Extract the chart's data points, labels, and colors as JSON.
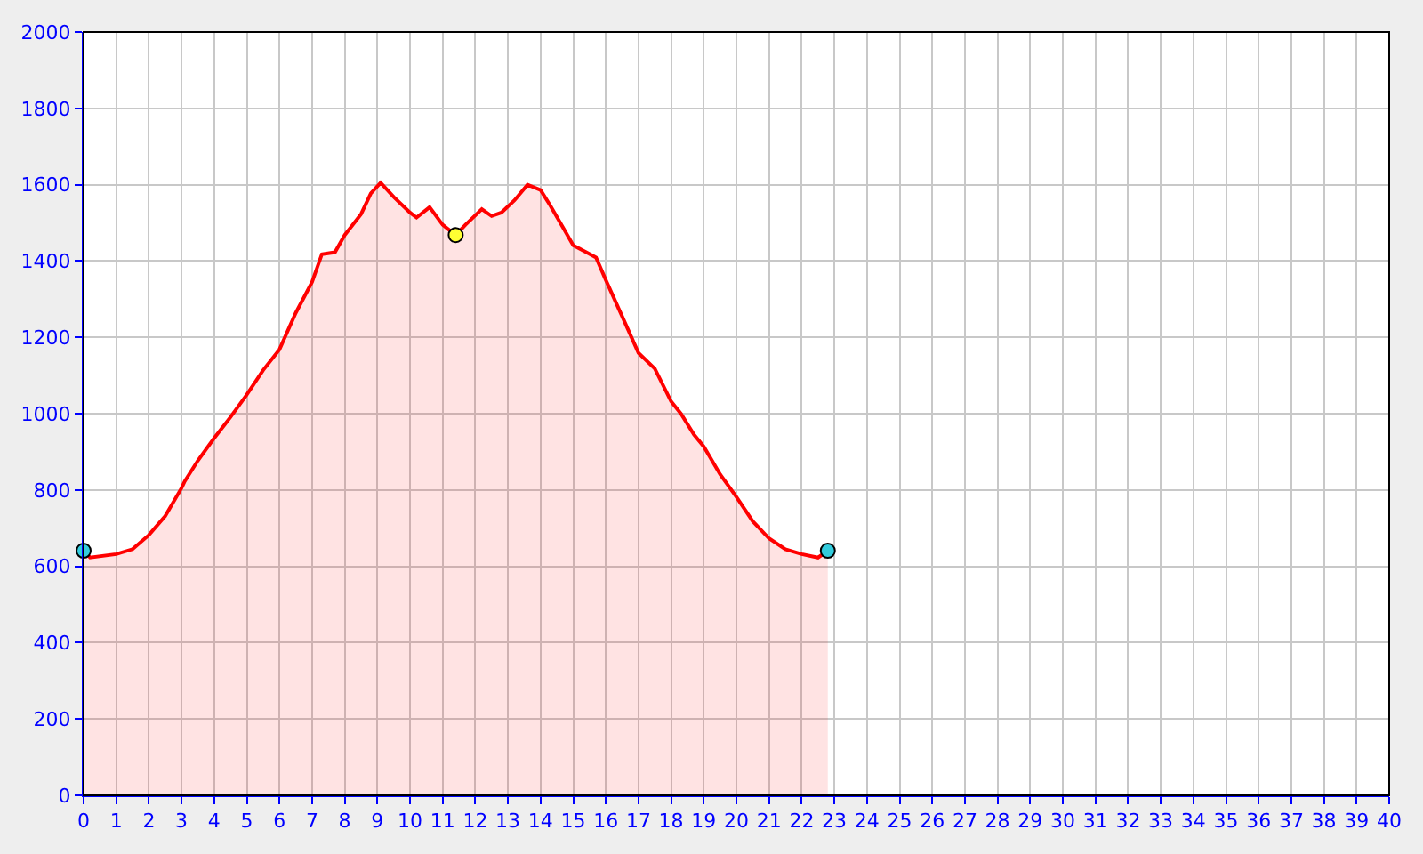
{
  "chart_data": {
    "type": "area",
    "xlim": [
      0,
      40
    ],
    "ylim": [
      0,
      2000
    ],
    "xticks": [
      0,
      1,
      2,
      3,
      4,
      5,
      6,
      7,
      8,
      9,
      10,
      11,
      12,
      13,
      14,
      15,
      16,
      17,
      18,
      19,
      20,
      21,
      22,
      23,
      24,
      25,
      26,
      27,
      28,
      29,
      30,
      31,
      32,
      33,
      34,
      35,
      36,
      37,
      38,
      39,
      40
    ],
    "yticks": [
      0,
      200,
      400,
      600,
      800,
      1000,
      1200,
      1400,
      1600,
      1800,
      2000
    ],
    "grid": true,
    "series": [
      {
        "color": "#ff0000",
        "marker": "none",
        "x": [
          0,
          0.2,
          1,
          1.5,
          2,
          2.5,
          3,
          3.1,
          3.5,
          4,
          4.5,
          5,
          5.5,
          6,
          6.5,
          7,
          7.3,
          7.7,
          8,
          8.5,
          8.8,
          9.1,
          9.5,
          10,
          10.2,
          10.6,
          11,
          11.4,
          11.7,
          12.2,
          12.5,
          12.8,
          13.2,
          13.6,
          14,
          14.3,
          14.7,
          15,
          15.4,
          15.7,
          16,
          16.5,
          17,
          17.5,
          18,
          18.3,
          18.7,
          19,
          19.5,
          20,
          20.5,
          21,
          21.5,
          22,
          22.5,
          22.8
        ],
        "values": [
          641,
          623,
          632,
          645,
          682,
          732,
          805,
          823,
          877,
          936,
          991,
          1050,
          1114,
          1168,
          1264,
          1345,
          1418,
          1423,
          1468,
          1523,
          1577,
          1605,
          1568,
          1527,
          1514,
          1541,
          1495,
          1468,
          1495,
          1536,
          1518,
          1527,
          1559,
          1600,
          1586,
          1545,
          1486,
          1441,
          1423,
          1409,
          1350,
          1255,
          1159,
          1118,
          1032,
          1000,
          945,
          914,
          841,
          782,
          718,
          673,
          645,
          632,
          623,
          641
        ]
      },
      {
        "type": "scatter",
        "marker": "circle",
        "colors": [
          "#33ccdd",
          "#ffff33",
          "#33ccdd"
        ],
        "x": [
          0,
          11.4,
          22.8
        ],
        "values": [
          641,
          1468,
          641
        ]
      }
    ]
  }
}
